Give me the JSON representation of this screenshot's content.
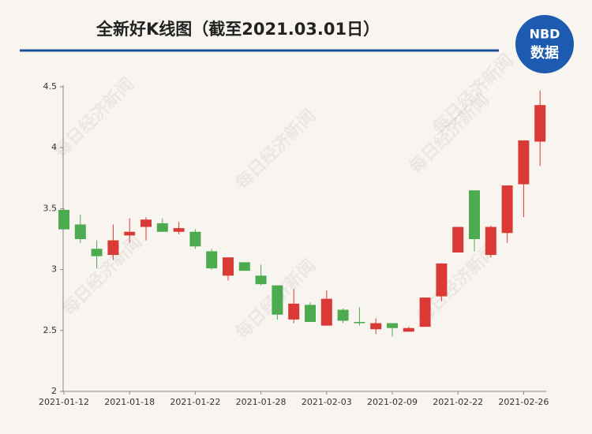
{
  "chart_data": {
    "type": "candlestick",
    "title": "全新好K线图（截至2021.03.01日）",
    "logo": {
      "top": "NBD",
      "bottom": "数据"
    },
    "watermark": "每日经济新闻",
    "categories": [
      "2021-01-12",
      null,
      null,
      null,
      "2021-01-18",
      null,
      null,
      null,
      "2021-01-22",
      null,
      null,
      null,
      "2021-01-28",
      null,
      null,
      null,
      "2021-02-03",
      null,
      null,
      null,
      "2021-02-09",
      null,
      null,
      null,
      "2021-02-22",
      null,
      null,
      null,
      "2021-02-26",
      null
    ],
    "open": [
      3.49,
      3.37,
      3.17,
      3.12,
      3.28,
      3.35,
      3.38,
      3.31,
      3.31,
      3.15,
      2.95,
      3.06,
      2.95,
      2.87,
      2.59,
      2.71,
      2.54,
      2.67,
      2.57,
      2.51,
      2.56,
      2.49,
      2.53,
      2.78,
      3.14,
      3.65,
      3.12,
      3.3,
      3.7,
      4.05
    ],
    "high": [
      3.5,
      3.45,
      3.24,
      3.37,
      3.42,
      3.43,
      3.42,
      3.39,
      3.33,
      3.17,
      3.1,
      3.06,
      3.04,
      2.87,
      2.84,
      2.73,
      2.83,
      2.68,
      2.69,
      2.6,
      2.56,
      2.53,
      2.77,
      3.05,
      3.35,
      3.65,
      3.36,
      3.69,
      4.06,
      4.47
    ],
    "low": [
      3.33,
      3.22,
      3.01,
      3.08,
      3.22,
      3.24,
      3.31,
      3.29,
      3.17,
      3.0,
      2.91,
      2.99,
      2.87,
      2.59,
      2.56,
      2.57,
      2.54,
      2.56,
      2.54,
      2.47,
      2.45,
      2.49,
      2.53,
      2.74,
      3.14,
      3.15,
      3.1,
      3.22,
      3.43,
      3.85
    ],
    "close": [
      3.33,
      3.25,
      3.11,
      3.24,
      3.31,
      3.41,
      3.31,
      3.34,
      3.19,
      3.01,
      3.1,
      2.99,
      2.88,
      2.63,
      2.72,
      2.57,
      2.76,
      2.58,
      2.56,
      2.56,
      2.52,
      2.52,
      2.77,
      3.05,
      3.35,
      3.25,
      3.35,
      3.69,
      4.06,
      4.35
    ],
    "up_color": "#d93a35",
    "down_color": "#4caa4f",
    "ylim": [
      2,
      4.5
    ],
    "yticks": [
      2,
      2.5,
      3,
      3.5,
      4,
      4.5
    ]
  }
}
